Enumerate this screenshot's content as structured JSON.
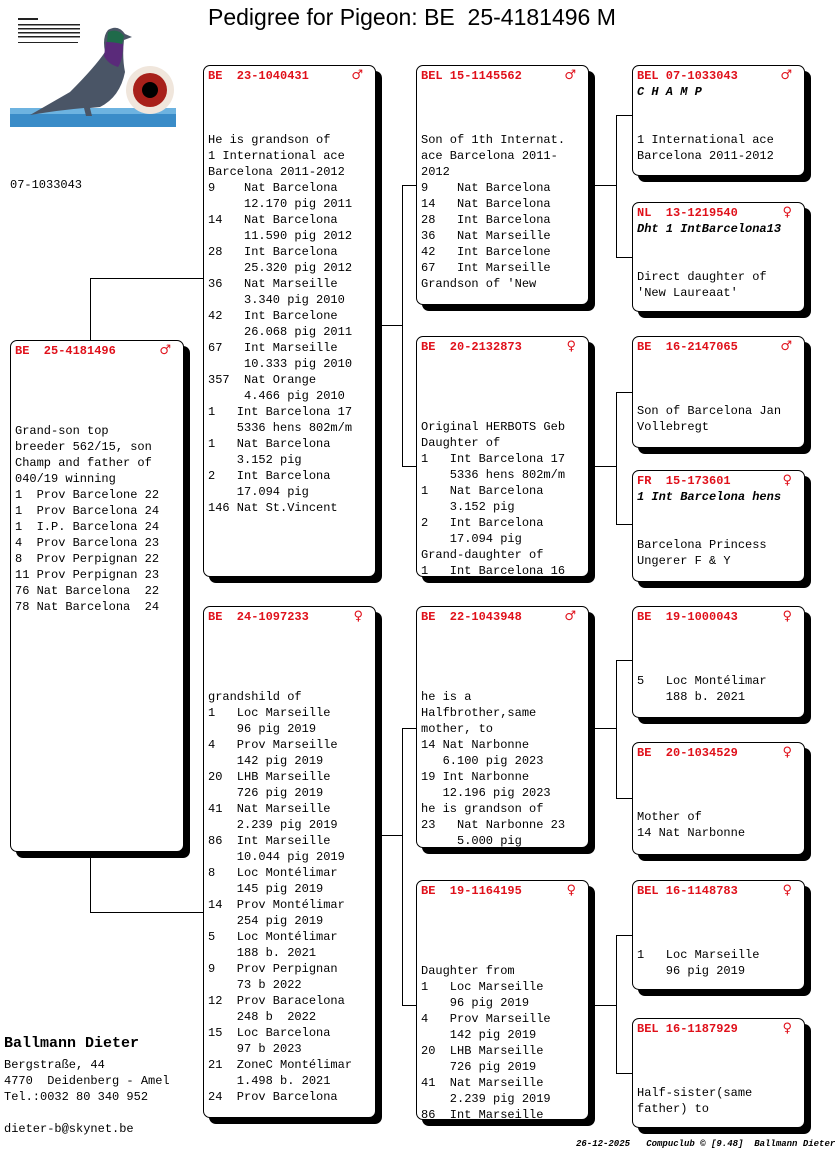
{
  "title": "Pedigree for Pigeon: BE  25-4181496 M",
  "logo_caption": "07-1033043",
  "breeder": {
    "name": "Ballmann Dieter",
    "address_lines": [
      "Bergstraße, 44",
      "4770  Deidenberg - Amel",
      "Tel.:0032 80 340 952",
      "",
      "dieter-b@skynet.be"
    ]
  },
  "footer": "26-12-2025   Compuclub © [9.48]  Ballmann Dieter",
  "colors": {
    "ring": "#e0101a",
    "border": "#000000"
  },
  "pigeons": [
    {
      "ring": "BE  25-4181496",
      "sex": "♂",
      "lines": [
        "",
        "",
        "",
        "",
        "Grand-son top",
        "breeder 562/15, son",
        "Champ and father of",
        "040/19 winning",
        "1  Prov Barcelone 22",
        "1  Prov Barcelona 24",
        "1  I.P. Barcelona 24",
        "4  Prov Barcelona 23",
        "8  Prov Perpignan 22",
        "11 Prov Perpignan 23",
        "76 Nat Barcelona  22",
        "78 Nat Barcelona  24"
      ]
    },
    {
      "ring": "BE  23-1040431",
      "sex": "♂",
      "lines": [
        "",
        "",
        "",
        "He is grandson of",
        "1 International ace",
        "Barcelona 2011-2012",
        "9    Nat Barcelona",
        "     12.170 pig 2011",
        "14   Nat Barcelona",
        "     11.590 pig 2012",
        "28   Int Barcelona",
        "     25.320 pig 2012",
        "36   Nat Marseille",
        "     3.340 pig 2010",
        "42   Int Barcelone",
        "     26.068 pig 2011",
        "67   Int Marseille",
        "     10.333 pig 2010",
        "357  Nat Orange",
        "     4.466 pig 2010",
        "1   Int Barcelona 17",
        "    5336 hens 802m/m",
        "1   Nat Barcelona",
        "    3.152 pig",
        "2   Int Barcelona",
        "    17.094 pig",
        "146 Nat St.Vincent"
      ]
    },
    {
      "ring": "BE  24-1097233",
      "sex": "♀",
      "lines": [
        "",
        "",
        "",
        "",
        "grandshild of",
        "1   Loc Marseille",
        "    96 pig 2019",
        "4   Prov Marseille",
        "    142 pig 2019",
        "20  LHB Marseille",
        "    726 pig 2019",
        "41  Nat Marseille",
        "    2.239 pig 2019",
        "86  Int Marseille",
        "    10.044 pig 2019",
        "8   Loc Montélimar",
        "    145 pig 2019",
        "14  Prov Montélimar",
        "    254 pig 2019",
        "5   Loc Montélimar",
        "    188 b. 2021",
        "9   Prov Perpignan",
        "    73 b 2022",
        "12  Prov Baracelona",
        "    248 b  2022",
        "15  Loc Barcelona",
        "    97 b 2023",
        "21  ZoneC Montélimar",
        "    1.498 b. 2021",
        "24  Prov Barcelona"
      ]
    },
    {
      "ring": "BEL 15-1145562",
      "sex": "♂",
      "lines": [
        "",
        "",
        "",
        "Son of 1th Internat.",
        "ace Barcelona 2011-",
        "2012",
        "9    Nat Barcelona",
        "14   Nat Barcelona",
        "28   Int Barcelona",
        "36   Nat Marseille",
        "42   Int Barcelone",
        "67   Int Marseille",
        "Grandson of 'New"
      ]
    },
    {
      "ring": "BE  20-2132873",
      "sex": "♀",
      "lines": [
        "",
        "",
        "",
        "",
        "Original HERBOTS Geb",
        "Daughter of",
        "1   Int Barcelona 17",
        "    5336 hens 802m/m",
        "1   Nat Barcelona",
        "    3.152 pig",
        "2   Int Barcelona",
        "    17.094 pig",
        "Grand-daughter of",
        "1   Int Barcelona 16"
      ]
    },
    {
      "ring": "BE  22-1043948",
      "sex": "♂",
      "lines": [
        "",
        "",
        "",
        "",
        "he is a",
        "Halfbrother,same",
        "mother, to",
        "14 Nat Narbonne",
        "   6.100 pig 2023",
        "19 Int Narbonne",
        "   12.196 pig 2023",
        "he is grandson of",
        "23   Nat Narbonne 23",
        "     5.000 pig"
      ]
    },
    {
      "ring": "BE  19-1164195",
      "sex": "♀",
      "lines": [
        "",
        "",
        "",
        "",
        "Daughter from",
        "1   Loc Marseille",
        "    96 pig 2019",
        "4   Prov Marseille",
        "    142 pig 2019",
        "20  LHB Marseille",
        "    726 pig 2019",
        "41  Nat Marseille",
        "    2.239 pig 2019",
        "86  Int Marseille"
      ]
    },
    {
      "ring": "BEL 07-1033043",
      "sex": "♂",
      "name": "C H A M P",
      "lines": [
        "",
        "",
        "1 International ace",
        "Barcelona 2011-2012"
      ]
    },
    {
      "ring": "NL  13-1219540",
      "sex": "♀",
      "name": "Dht 1 IntBarcelona13",
      "lines": [
        "",
        "",
        "Direct daughter of",
        "'New Laureaat'"
      ]
    },
    {
      "ring": "BE  16-2147065",
      "sex": "♂",
      "lines": [
        "",
        "",
        "",
        "Son of Barcelona Jan",
        "Vollebregt"
      ]
    },
    {
      "ring": "FR  15-173601",
      "sex": "♀",
      "name": "1 Int Barcelona hens",
      "lines": [
        "",
        "",
        "Barcelona Princess",
        "Ungerer F & Y"
      ]
    },
    {
      "ring": "BE  19-1000043",
      "sex": "♀",
      "lines": [
        "",
        "",
        "",
        "5   Loc Montélimar",
        "    188 b. 2021"
      ]
    },
    {
      "ring": "BE  20-1034529",
      "sex": "♀",
      "lines": [
        "",
        "",
        "",
        "Mother of",
        "14 Nat Narbonne"
      ]
    },
    {
      "ring": "BEL 16-1148783",
      "sex": "♀",
      "lines": [
        "",
        "",
        "",
        "1   Loc Marseille",
        "    96 pig 2019"
      ]
    },
    {
      "ring": "BEL 16-1187929",
      "sex": "♀",
      "lines": [
        "",
        "",
        "",
        "Half-sister(same",
        "father) to"
      ]
    }
  ]
}
